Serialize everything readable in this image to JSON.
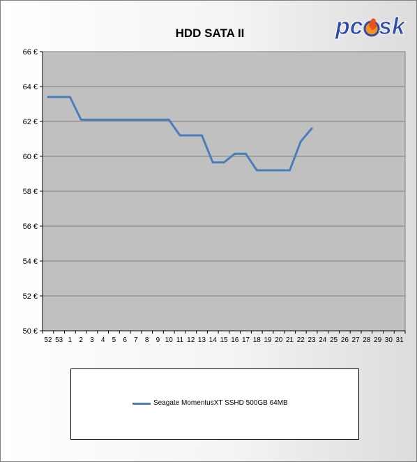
{
  "chart_data": {
    "type": "line",
    "title": "HDD SATA II",
    "categories": [
      "52",
      "53",
      "1",
      "2",
      "3",
      "4",
      "5",
      "6",
      "7",
      "8",
      "9",
      "10",
      "11",
      "12",
      "13",
      "14",
      "15",
      "16",
      "17",
      "18",
      "19",
      "20",
      "21",
      "22",
      "23",
      "24",
      "25",
      "26",
      "27",
      "28",
      "29",
      "30",
      "31"
    ],
    "y_ticks": [
      "50 €",
      "52 €",
      "54 €",
      "56 €",
      "58 €",
      "60 €",
      "62 €",
      "64 €",
      "66 €"
    ],
    "ylim": [
      50,
      66
    ],
    "y_step": 2,
    "grid": true,
    "legend_position": "bottom",
    "series": [
      {
        "name": "Seagate MomentusXT SSHD 500GB 64MB",
        "color": "#4a7ebb",
        "values": [
          63.4,
          63.4,
          63.4,
          62.1,
          62.1,
          62.1,
          62.1,
          62.1,
          62.1,
          62.1,
          62.1,
          62.1,
          61.2,
          61.2,
          61.2,
          59.65,
          59.65,
          60.15,
          60.15,
          59.2,
          59.2,
          59.2,
          59.2,
          60.85,
          61.6,
          null,
          null,
          null,
          null,
          null,
          null,
          null,
          null
        ]
      }
    ]
  },
  "colors": {
    "plot_background": "#c0c0c0",
    "gridline": "#808080",
    "series_line": "#4a7ebb",
    "logo_blue": "#2f4aa8",
    "logo_flame": "#f29222"
  },
  "logo": {
    "text_left": "pc",
    "text_right": "sk",
    "icon": "flame-icon"
  }
}
